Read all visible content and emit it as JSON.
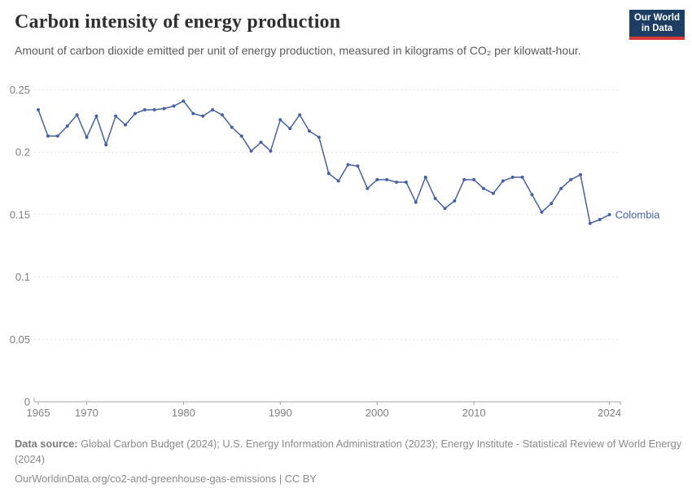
{
  "header": {
    "title": "Carbon intensity of energy production",
    "subtitle": "Amount of carbon dioxide emitted per unit of energy production, measured in kilograms of CO₂ per kilowatt-hour.",
    "logo": {
      "line1": "Our World",
      "line2": "in Data",
      "bg_color": "#1d3d63",
      "accent_color": "#d73a35"
    }
  },
  "chart_data": {
    "type": "line",
    "title": "Carbon intensity of energy production",
    "xlabel": "",
    "ylabel": "kilograms of CO₂ per kilowatt-hour",
    "xlim": [
      1964,
      2025
    ],
    "ylim": [
      0,
      0.25
    ],
    "x_ticks": [
      1965,
      1970,
      1980,
      1990,
      2000,
      2010,
      2024
    ],
    "y_ticks": [
      0,
      0.05,
      0.1,
      0.15,
      0.2,
      0.25
    ],
    "grid": "horizontal-dashed",
    "legend_position": "end-of-line-label",
    "series": [
      {
        "name": "Colombia",
        "color": "#4762A3",
        "x": [
          1965,
          1966,
          1967,
          1968,
          1969,
          1970,
          1971,
          1972,
          1973,
          1974,
          1975,
          1976,
          1977,
          1978,
          1979,
          1980,
          1981,
          1982,
          1983,
          1984,
          1985,
          1986,
          1987,
          1988,
          1989,
          1990,
          1991,
          1992,
          1993,
          1994,
          1995,
          1996,
          1997,
          1998,
          1999,
          2000,
          2001,
          2002,
          2003,
          2004,
          2005,
          2006,
          2007,
          2008,
          2009,
          2010,
          2011,
          2012,
          2013,
          2014,
          2015,
          2016,
          2017,
          2018,
          2019,
          2020,
          2021,
          2022,
          2023,
          2024
        ],
        "values": [
          0.234,
          0.213,
          0.213,
          0.221,
          0.23,
          0.212,
          0.229,
          0.206,
          0.229,
          0.222,
          0.231,
          0.234,
          0.234,
          0.235,
          0.237,
          0.241,
          0.231,
          0.229,
          0.234,
          0.23,
          0.22,
          0.213,
          0.201,
          0.208,
          0.201,
          0.226,
          0.219,
          0.23,
          0.217,
          0.212,
          0.183,
          0.177,
          0.19,
          0.189,
          0.171,
          0.178,
          0.178,
          0.176,
          0.176,
          0.16,
          0.18,
          0.163,
          0.155,
          0.161,
          0.178,
          0.178,
          0.171,
          0.167,
          0.177,
          0.18,
          0.18,
          0.166,
          0.152,
          0.159,
          0.171,
          0.178,
          0.182,
          0.143,
          0.146,
          0.15
        ]
      }
    ],
    "style": {
      "grid_color": "#e1e1e1",
      "axis_color": "#a3a3a3",
      "tick_label_color": "#7f7f7f"
    }
  },
  "footer": {
    "datasource_label": "Data source:",
    "datasource_text": " Global Carbon Budget (2024); U.S. Energy Information Administration (2023); Energy Institute - Statistical Review of World Energy (2024)",
    "url_line": "OurWorldinData.org/co2-and-greenhouse-gas-emissions | CC BY"
  }
}
